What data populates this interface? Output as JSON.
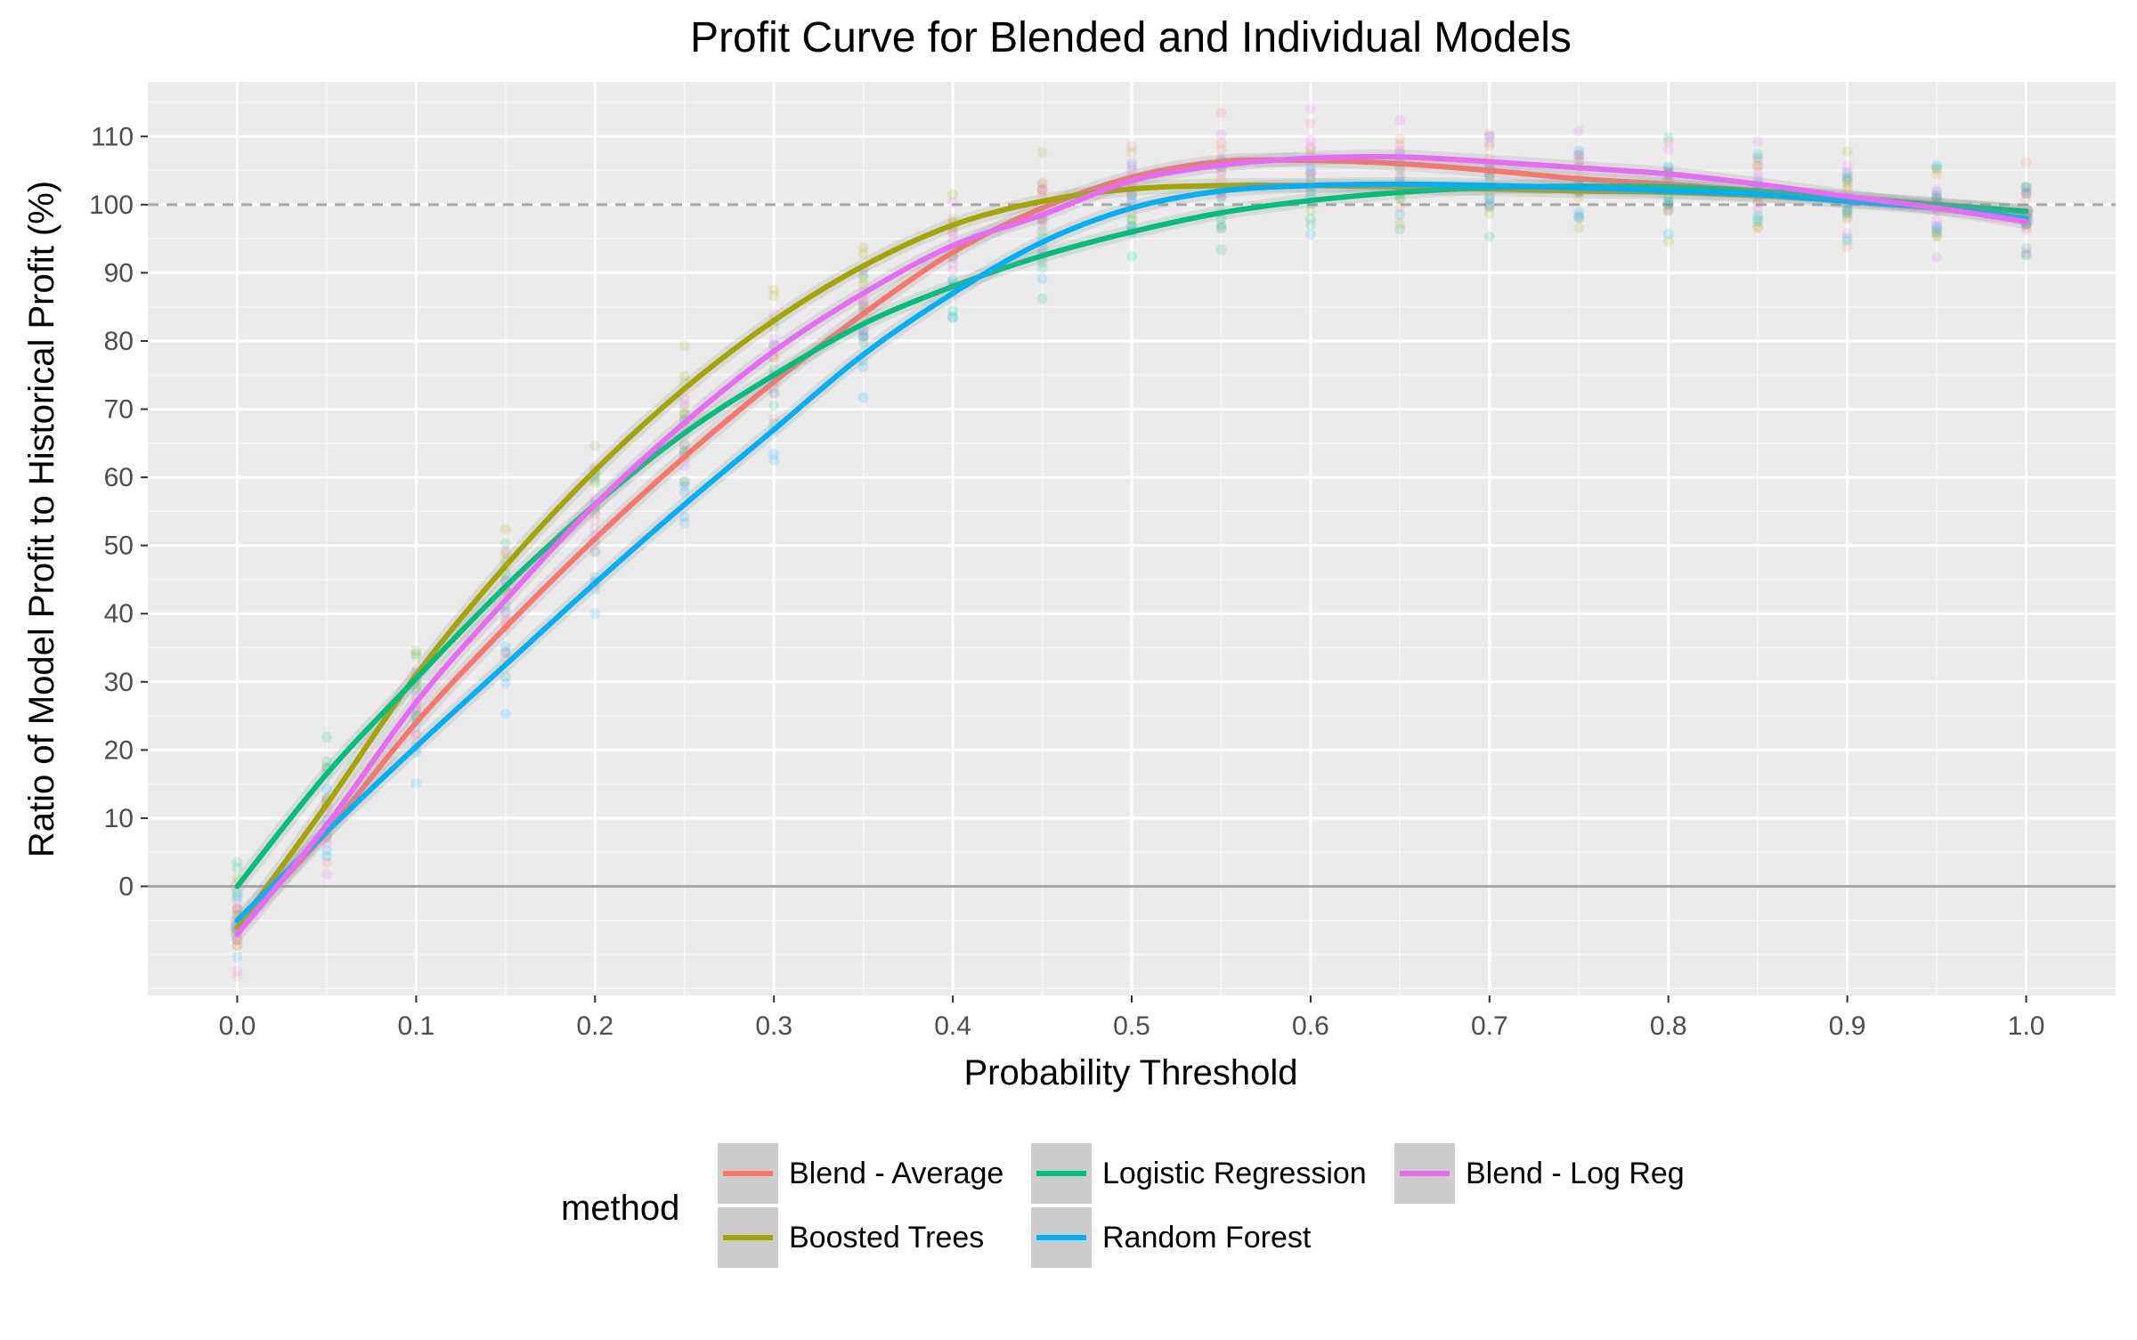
{
  "chart_data": {
    "type": "line",
    "title": "Profit Curve for Blended and Individual Models",
    "xlabel": "Probability Threshold",
    "ylabel": "Ratio of Model Profit to Historical Profit (%)",
    "xlim": [
      -0.05,
      1.05
    ],
    "ylim": [
      -16,
      118
    ],
    "x_ticks": [
      0.0,
      0.1,
      0.2,
      0.3,
      0.4,
      0.5,
      0.6,
      0.7,
      0.8,
      0.9,
      1.0
    ],
    "x_tick_labels": [
      "0.0",
      "0.1",
      "0.2",
      "0.3",
      "0.4",
      "0.5",
      "0.6",
      "0.7",
      "0.8",
      "0.9",
      "1.0"
    ],
    "y_ticks": [
      0,
      10,
      20,
      30,
      40,
      50,
      60,
      70,
      80,
      90,
      100,
      110
    ],
    "y_tick_labels": [
      "0",
      "10",
      "20",
      "30",
      "40",
      "50",
      "60",
      "70",
      "80",
      "90",
      "100",
      "110"
    ],
    "reference_lines": [
      {
        "axis": "y",
        "value": 100,
        "style": "dashed",
        "color": "#a6a6a6"
      },
      {
        "axis": "y",
        "value": 0,
        "style": "solid",
        "color": "#a6a6a6"
      }
    ],
    "grid": true,
    "panel_background": "#ebebeb",
    "legend": {
      "title": "method",
      "position": "bottom",
      "entries": [
        {
          "label": "Blend - Average",
          "color": "#F8766D"
        },
        {
          "label": "Boosted Trees",
          "color": "#A3A500"
        },
        {
          "label": "Logistic Regression",
          "color": "#00BF7D"
        },
        {
          "label": "Random Forest",
          "color": "#00B0F6"
        },
        {
          "label": "Blend - Log Reg",
          "color": "#E76BF3"
        }
      ]
    },
    "x": [
      0.0,
      0.05,
      0.1,
      0.15,
      0.2,
      0.25,
      0.3,
      0.35,
      0.4,
      0.45,
      0.5,
      0.55,
      0.6,
      0.65,
      0.7,
      0.75,
      0.8,
      0.85,
      0.9,
      0.95,
      1.0
    ],
    "series": [
      {
        "name": "Blend - Average",
        "color": "#F8766D",
        "values": [
          -6,
          8,
          24,
          38,
          51,
          63,
          74,
          84,
          93,
          99.5,
          104,
          106.3,
          106.5,
          106,
          105,
          103.8,
          103,
          102,
          101,
          100,
          99
        ]
      },
      {
        "name": "Boosted Trees",
        "color": "#A3A500",
        "values": [
          -6,
          12,
          31,
          47,
          61,
          73,
          83,
          91,
          97,
          100.5,
          102.3,
          102.8,
          102.8,
          102.6,
          102.3,
          102,
          101.8,
          101.3,
          100.6,
          99.8,
          99
        ]
      },
      {
        "name": "Logistic Regression",
        "color": "#00BF7D",
        "values": [
          0,
          16.5,
          30.5,
          44,
          56,
          66.5,
          75,
          82.5,
          88,
          92.5,
          96,
          98.8,
          100.6,
          101.8,
          102.5,
          102.7,
          102.6,
          102,
          101,
          100,
          99
        ]
      },
      {
        "name": "Random Forest",
        "color": "#00B0F6",
        "values": [
          -5,
          8,
          20.5,
          32.5,
          44.5,
          56,
          67,
          78,
          87,
          94.5,
          99.5,
          102,
          102.8,
          103,
          102.8,
          102.5,
          102,
          101.5,
          100.5,
          99.5,
          98
        ]
      },
      {
        "name": "Blend - Log Reg",
        "color": "#E76BF3",
        "values": [
          -7,
          9,
          27,
          42,
          56,
          68,
          78.5,
          87,
          94,
          98.5,
          103.5,
          105.8,
          106.8,
          107,
          106.3,
          105.4,
          104.5,
          103,
          101.2,
          99.5,
          97.5
        ]
      }
    ]
  }
}
